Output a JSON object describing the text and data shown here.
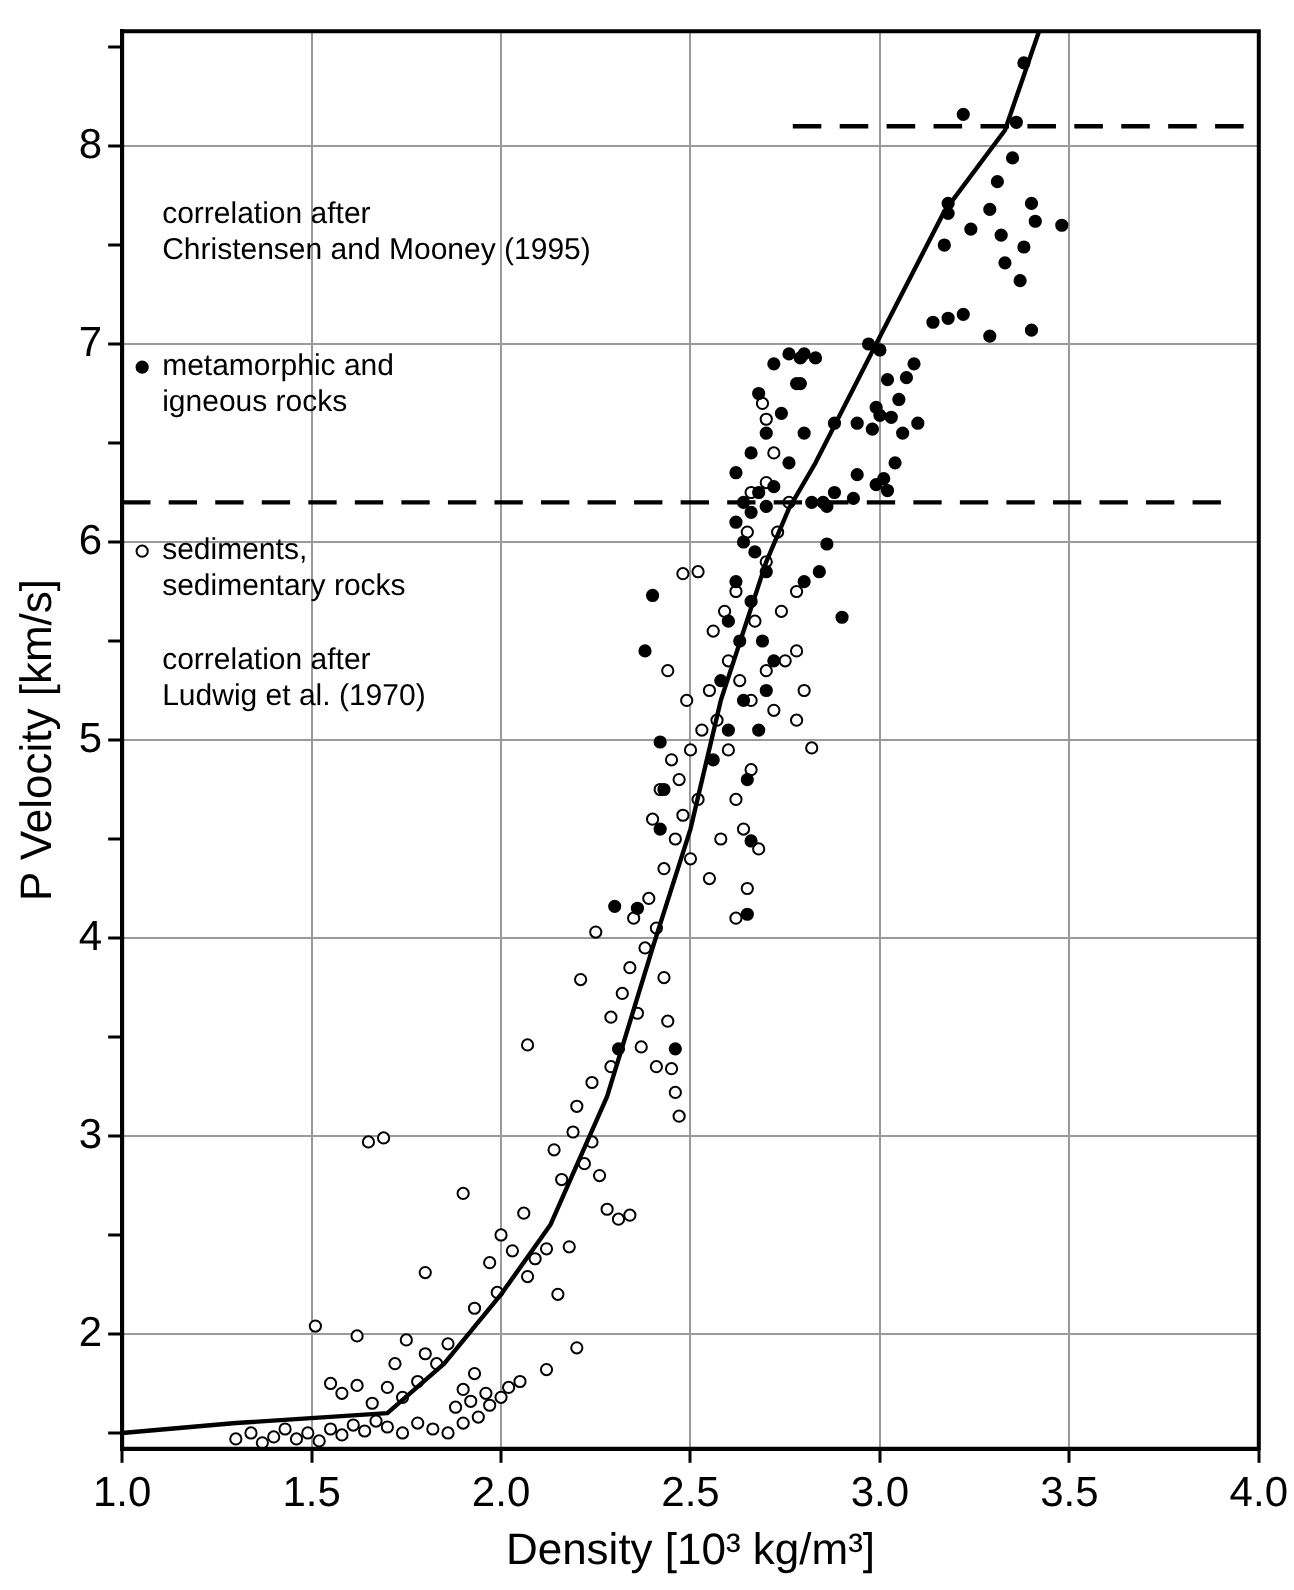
{
  "chart_data": {
    "type": "scatter",
    "xlabel": "Density [10³ kg/m³]",
    "ylabel": "P Velocity [km/s]",
    "xlim": [
      1,
      4
    ],
    "ylim": [
      1.42,
      8.58
    ],
    "xticks": [
      {
        "value": 1,
        "label": "1.0"
      },
      {
        "value": 1.5,
        "label": "1.5"
      },
      {
        "value": 2,
        "label": "2.0"
      },
      {
        "value": 2.5,
        "label": "2.5"
      },
      {
        "value": 3,
        "label": "3.0"
      },
      {
        "value": 3.5,
        "label": "3.5"
      },
      {
        "value": 4,
        "label": "4.0"
      }
    ],
    "yticks": [
      {
        "value": 1.5,
        "label": null
      },
      2,
      {
        "value": 2.5,
        "label": null
      },
      3,
      {
        "value": 3.5,
        "label": null
      },
      4,
      {
        "value": 4.5,
        "label": null
      },
      5,
      {
        "value": 5.5,
        "label": null
      },
      6,
      {
        "value": 6.5,
        "label": null
      },
      7,
      {
        "value": 7.5,
        "label": null
      },
      8,
      {
        "value": 8.5,
        "label": null
      }
    ],
    "grid": true,
    "legend": "top left",
    "annotations": [
      "correlation after\nChristensen and Mooney (1995)",
      "correlation after\nLudwig et al. (1970)"
    ],
    "series": [
      {
        "type": "line",
        "color": "#000000",
        "marker": "none",
        "line_style": "solid",
        "x": [
          1.0,
          1.3,
          1.7,
          1.85,
          2.0,
          2.13,
          2.28,
          2.4,
          2.5,
          2.58,
          2.7,
          2.76,
          2.83,
          2.99,
          3.17,
          3.33,
          3.42
        ],
        "values": [
          1.5,
          1.55,
          1.6,
          1.85,
          2.2,
          2.55,
          3.2,
          3.95,
          4.55,
          5.2,
          5.9,
          6.17,
          6.4,
          7.0,
          7.67,
          8.08,
          8.58
        ]
      },
      {
        "type": "line",
        "color": "#000000",
        "marker": "none",
        "line_style": "dashed",
        "x": [
          1.0,
          3.9
        ],
        "values": [
          6.2,
          6.2
        ]
      },
      {
        "type": "line",
        "color": "#000000",
        "marker": "none",
        "line_style": "dashed",
        "x": [
          2.77,
          3.96
        ],
        "values": [
          8.1,
          8.1
        ]
      },
      {
        "type": "scatter",
        "name": "metamorphic and\nigneous rocks",
        "color": "#000000",
        "marker": "circle",
        "x": [
          2.4,
          2.38,
          2.42,
          2.43,
          2.66,
          2.42,
          2.36,
          2.31,
          2.46,
          2.3,
          2.65,
          2.62,
          2.64,
          2.66,
          2.68,
          2.7,
          2.72,
          2.64,
          2.67,
          2.7,
          2.62,
          2.66,
          2.6,
          2.63,
          2.69,
          2.72,
          2.58,
          2.64,
          2.68,
          2.6,
          2.56,
          2.66,
          2.7,
          2.74,
          2.68,
          2.72,
          2.76,
          2.8,
          2.78,
          2.76,
          2.8,
          2.82,
          2.85,
          2.88,
          2.8,
          2.84,
          2.7,
          2.65,
          2.9,
          2.62,
          2.97,
          3.0,
          3.02,
          3.07,
          3.09,
          3.05,
          3.0,
          3.03,
          2.98,
          3.06,
          3.1,
          2.94,
          2.99,
          2.94,
          3.04,
          3.01,
          2.99,
          3.02,
          2.93,
          2.86,
          2.86,
          2.88,
          2.83,
          2.79,
          2.79,
          3.14,
          3.18,
          3.22,
          3.29,
          3.4,
          3.17,
          3.18,
          3.18,
          3.24,
          3.29,
          3.32,
          3.33,
          3.38,
          3.37,
          3.4,
          3.41,
          3.48,
          3.31,
          3.35,
          3.36,
          3.22,
          3.38
        ],
        "values": [
          5.73,
          5.45,
          4.99,
          4.75,
          4.49,
          4.55,
          4.15,
          3.44,
          3.44,
          4.16,
          4.12,
          6.1,
          6.2,
          6.15,
          6.25,
          6.18,
          6.28,
          6.0,
          5.95,
          5.85,
          5.8,
          5.7,
          5.6,
          5.5,
          5.5,
          5.4,
          5.3,
          5.2,
          5.05,
          5.05,
          4.9,
          6.45,
          6.55,
          6.65,
          6.75,
          6.9,
          6.95,
          6.95,
          6.8,
          6.4,
          6.55,
          6.2,
          6.2,
          6.25,
          5.8,
          5.85,
          5.25,
          4.8,
          5.62,
          6.35,
          7.0,
          6.97,
          6.82,
          6.83,
          6.9,
          6.72,
          6.64,
          6.63,
          6.57,
          6.55,
          6.6,
          6.6,
          6.68,
          6.34,
          6.4,
          6.32,
          6.29,
          6.26,
          6.22,
          6.18,
          5.99,
          6.6,
          6.93,
          6.93,
          6.8,
          7.11,
          7.13,
          7.15,
          7.04,
          7.07,
          7.5,
          7.66,
          7.71,
          7.58,
          7.68,
          7.55,
          7.41,
          7.49,
          7.32,
          7.71,
          7.62,
          7.6,
          7.82,
          7.94,
          8.12,
          8.16,
          8.42
        ]
      },
      {
        "type": "scatter",
        "name": "sediments,\nsedimentary rocks",
        "color": "#ffffff",
        "marker": "circle",
        "x": [
          1.3,
          1.34,
          1.37,
          1.4,
          1.43,
          1.46,
          1.49,
          1.52,
          1.55,
          1.58,
          1.61,
          1.64,
          1.67,
          1.7,
          1.74,
          1.78,
          1.82,
          1.86,
          1.9,
          1.94,
          1.97,
          2.0,
          1.55,
          1.58,
          1.62,
          1.66,
          1.7,
          1.74,
          1.78,
          1.83,
          1.86,
          1.8,
          1.75,
          1.72,
          1.9,
          1.93,
          1.96,
          2.02,
          2.05,
          1.88,
          1.92,
          1.51,
          1.62,
          1.65,
          1.69,
          1.9,
          1.8,
          1.93,
          1.97,
          2.0,
          2.03,
          2.06,
          2.09,
          1.99,
          2.07,
          2.12,
          2.15,
          2.12,
          2.2,
          2.18,
          2.16,
          2.14,
          2.19,
          2.22,
          2.24,
          2.26,
          2.2,
          2.24,
          2.29,
          2.28,
          2.31,
          2.34,
          2.07,
          2.25,
          2.21,
          2.29,
          2.32,
          2.34,
          2.36,
          2.38,
          2.35,
          2.39,
          2.41,
          2.43,
          2.44,
          2.45,
          2.46,
          2.47,
          2.41,
          2.37,
          2.43,
          2.46,
          2.48,
          2.5,
          2.52,
          2.47,
          2.5,
          2.53,
          2.45,
          2.49,
          2.55,
          2.57,
          2.6,
          2.62,
          2.64,
          2.66,
          2.68,
          2.55,
          2.58,
          2.6,
          2.63,
          2.66,
          2.7,
          2.72,
          2.75,
          2.78,
          2.8,
          2.74,
          2.78,
          2.7,
          2.73,
          2.76,
          2.7,
          2.66,
          2.69,
          2.7,
          2.72,
          2.52,
          2.56,
          2.59,
          2.62,
          2.67,
          2.65,
          2.4,
          2.42,
          2.62,
          2.65,
          2.78,
          2.82,
          2.44,
          2.48
        ],
        "values": [
          1.47,
          1.5,
          1.45,
          1.48,
          1.52,
          1.47,
          1.5,
          1.46,
          1.52,
          1.49,
          1.54,
          1.51,
          1.56,
          1.53,
          1.5,
          1.55,
          1.52,
          1.5,
          1.55,
          1.58,
          1.64,
          1.68,
          1.75,
          1.7,
          1.74,
          1.65,
          1.73,
          1.68,
          1.76,
          1.85,
          1.95,
          1.9,
          1.97,
          1.85,
          1.72,
          1.8,
          1.7,
          1.73,
          1.76,
          1.63,
          1.66,
          2.04,
          1.99,
          2.97,
          2.99,
          2.71,
          2.31,
          2.13,
          2.36,
          2.5,
          2.42,
          2.61,
          2.38,
          2.21,
          2.29,
          2.43,
          2.2,
          1.82,
          1.93,
          2.44,
          2.78,
          2.93,
          3.02,
          2.86,
          2.97,
          2.8,
          3.15,
          3.27,
          3.35,
          2.63,
          2.58,
          2.6,
          3.46,
          4.03,
          3.79,
          3.6,
          3.72,
          3.85,
          3.62,
          3.95,
          4.1,
          4.2,
          4.05,
          3.8,
          3.58,
          3.34,
          3.22,
          3.1,
          3.35,
          3.45,
          4.35,
          4.5,
          4.62,
          4.4,
          4.7,
          4.8,
          4.95,
          5.05,
          4.9,
          5.2,
          5.25,
          5.1,
          4.95,
          4.7,
          4.55,
          4.85,
          4.45,
          4.3,
          4.5,
          5.4,
          5.3,
          5.2,
          5.35,
          5.15,
          5.4,
          5.45,
          5.25,
          5.65,
          5.75,
          5.9,
          6.05,
          6.2,
          6.3,
          6.25,
          6.7,
          6.62,
          6.45,
          5.85,
          5.55,
          5.65,
          5.75,
          5.6,
          6.05,
          4.6,
          4.75,
          4.1,
          4.25,
          5.1,
          4.96,
          5.35,
          5.84
        ]
      }
    ]
  }
}
